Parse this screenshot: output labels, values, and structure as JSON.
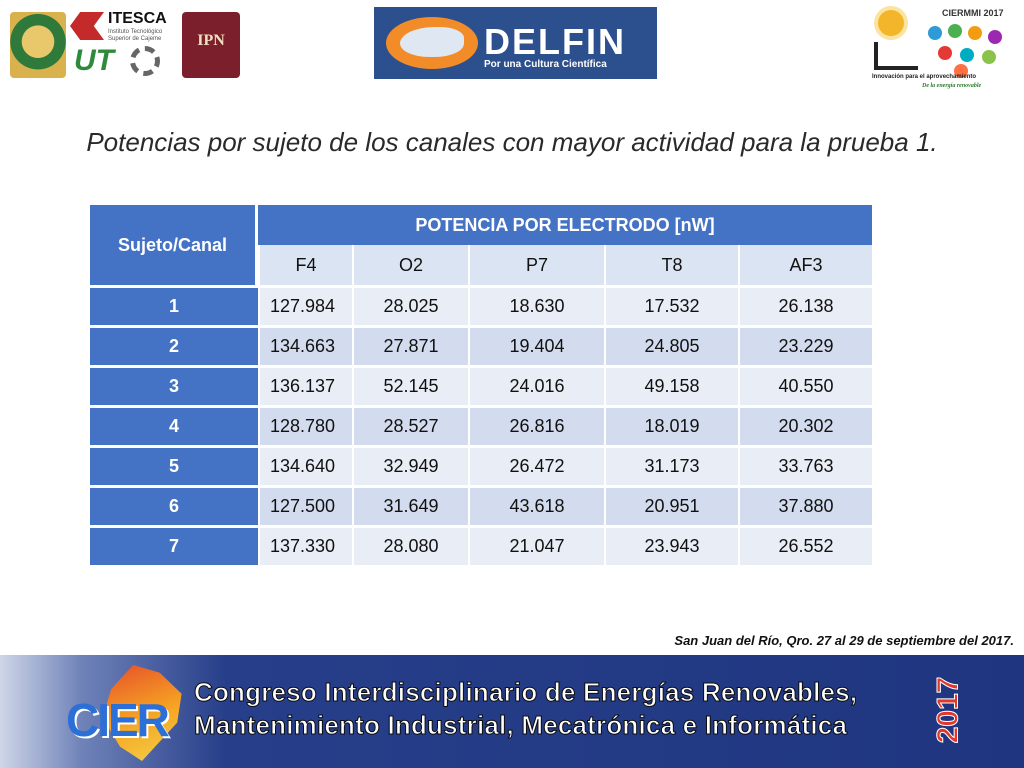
{
  "logos": {
    "itesca_name": "ITESCA",
    "itesca_sub": "Instituto Tecnológico Superior de Cajeme",
    "ut_text": "UT",
    "ipn_text": "IPN",
    "delfin_name": "DELFIN",
    "delfin_tagline": "Por una Cultura Científica",
    "ciermmi_title": "CIERMMI 2017",
    "ciermmi_caption1": "Innovación para el aprovechamiento",
    "ciermmi_caption2": "De la energía renovable"
  },
  "slide": {
    "title": "Potencias por sujeto de los canales con mayor actividad para la prueba 1."
  },
  "table": {
    "row_header": "Sujeto/Canal",
    "group_header": "POTENCIA POR ELECTRODO [nW]",
    "columns": [
      "F4",
      "O2",
      "P7",
      "T8",
      "AF3"
    ],
    "rows": [
      {
        "subject": "1",
        "values": [
          "127.984",
          "28.025",
          "18.630",
          "17.532",
          "26.138"
        ]
      },
      {
        "subject": "2",
        "values": [
          "134.663",
          "27.871",
          "19.404",
          "24.805",
          "23.229"
        ]
      },
      {
        "subject": "3",
        "values": [
          "136.137",
          "52.145",
          "24.016",
          "49.158",
          "40.550"
        ]
      },
      {
        "subject": "4",
        "values": [
          "128.780",
          "28.527",
          "26.816",
          "18.019",
          "20.302"
        ]
      },
      {
        "subject": "5",
        "values": [
          "134.640",
          "32.949",
          "26.472",
          "31.173",
          "33.763"
        ]
      },
      {
        "subject": "6",
        "values": [
          "127.500",
          "31.649",
          "43.618",
          "20.951",
          "37.880"
        ]
      },
      {
        "subject": "7",
        "values": [
          "137.330",
          "28.080",
          "21.047",
          "23.943",
          "26.552"
        ]
      }
    ]
  },
  "footer": {
    "location_date": "San Juan del Río, Qro. 27 al 29 de septiembre del 2017."
  },
  "banner": {
    "logo_text": "CIER",
    "line1": "Congreso Interdisciplinario de Energías Renovables,",
    "line2": "Mantenimiento Industrial, Mecatrónica e Informática",
    "year": "2017"
  },
  "colors": {
    "header_blue": "#4472c4",
    "row_light": "#e8edf6",
    "row_dark": "#d2dcee",
    "banner_navy": "#1f3580",
    "year_red": "#e2382a"
  }
}
